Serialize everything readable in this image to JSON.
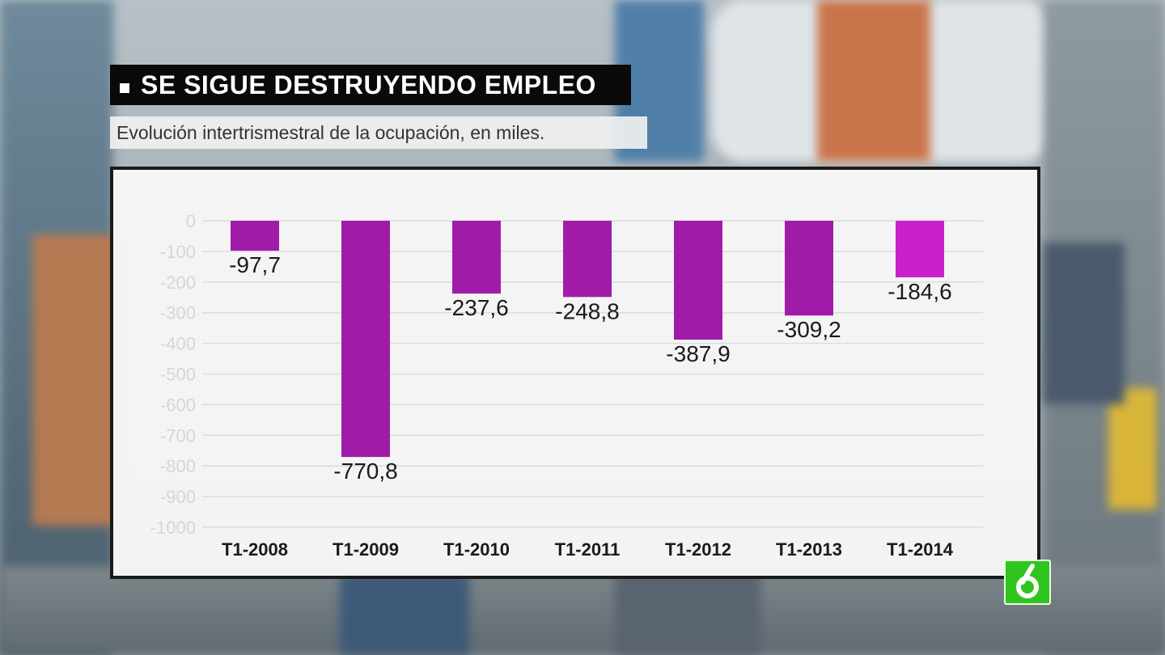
{
  "header": {
    "title": "SE SIGUE DESTRUYENDO EMPLEO",
    "subtitle": "Evolución intertrismestral de la ocupación, en miles."
  },
  "chart_data": {
    "type": "bar",
    "title": "SE SIGUE DESTRUYENDO EMPLEO",
    "subtitle": "Evolución intertrismestral de la ocupación, en miles.",
    "categories": [
      "T1-2008",
      "T1-2009",
      "T1-2010",
      "T1-2011",
      "T1-2012",
      "T1-2013",
      "T1-2014"
    ],
    "values": [
      -97.7,
      -770.8,
      -237.6,
      -248.8,
      -387.9,
      -309.2,
      -184.6
    ],
    "value_labels": [
      "-97,7",
      "-770,8",
      "-237,6",
      "-248,8",
      "-387,9",
      "-309,2",
      "-184,6"
    ],
    "yticks": [
      0,
      -100,
      -200,
      -300,
      -400,
      -500,
      -600,
      -700,
      -800,
      -900,
      -1000
    ],
    "ylim": [
      -1000,
      0
    ],
    "grid": true,
    "legend": "none",
    "xlabel": "",
    "ylabel": "",
    "colors": {
      "bar": "#a01ca8",
      "bar_last": "#cc1fcc"
    }
  },
  "logo": {
    "icon": "la-sexta-logo"
  }
}
